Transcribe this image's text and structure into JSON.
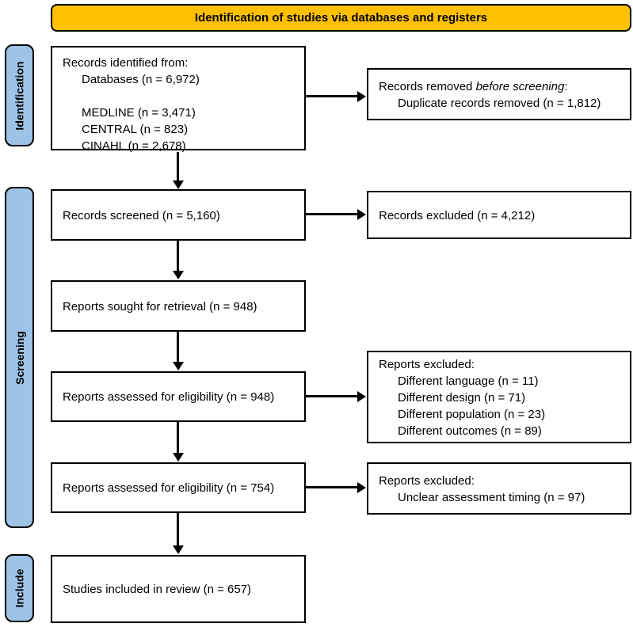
{
  "banner": {
    "title": "Identification of studies via databases and registers"
  },
  "stages": {
    "identification": "Identification",
    "screening": "Screening",
    "include": "Include"
  },
  "colors": {
    "banner_bg": "#FFC000",
    "stage_bg": "#9DC3E6",
    "border": "#000000",
    "box_bg": "#FFFFFF"
  },
  "boxes": {
    "records_identified": {
      "title": "Records identified from:",
      "lines": [
        "Databases (n = 6,972)",
        "",
        "MEDLINE (n = 3,471)",
        "CENTRAL (n = 823)",
        "CINAHL (n = 2,678)"
      ]
    },
    "records_removed": {
      "prefix": "Records removed ",
      "italic": "before screening",
      "suffix": ":",
      "detail": "Duplicate records removed (n = 1,812)"
    },
    "records_screened": {
      "label": "Records screened (n = 5,160)"
    },
    "records_excluded": {
      "label": "Records excluded (n = 4,212)"
    },
    "reports_sought": {
      "label": "Reports sought for retrieval (n = 948)"
    },
    "reports_assessed_1": {
      "label": "Reports assessed for eligibility (n = 948)"
    },
    "reports_excluded_1": {
      "title": "Reports excluded:",
      "lines": [
        "Different language (n = 11)",
        "Different design (n = 71)",
        "Different population (n = 23)",
        "Different outcomes (n = 89)"
      ]
    },
    "reports_assessed_2": {
      "label": "Reports assessed for eligibility (n = 754)"
    },
    "reports_excluded_2": {
      "title": "Reports excluded:",
      "lines": [
        "Unclear assessment timing (n = 97)"
      ]
    },
    "studies_included": {
      "label": "Studies included in review (n = 657)"
    }
  }
}
